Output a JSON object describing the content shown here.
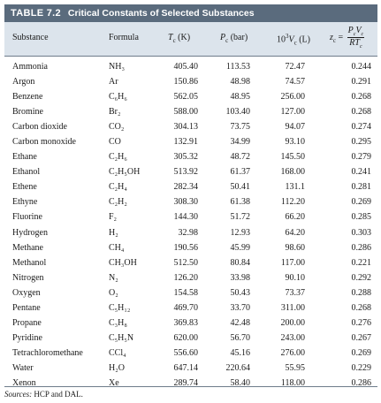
{
  "table": {
    "number": "TABLE 7.2",
    "caption": "Critical Constants of Selected Substances",
    "headers": {
      "substance": "Substance",
      "formula": "Formula",
      "tc": "T",
      "tc_sub": "c",
      "tc_unit": " (K)",
      "pc": "P",
      "pc_sub": "c",
      "pc_unit": " (bar)",
      "vc_prefix": "10",
      "vc_sup": "3",
      "vc": "V",
      "vc_sub": "c",
      "vc_unit": " (L)",
      "zc": "z",
      "zc_sub": "c",
      "zc_eq": " = ",
      "zc_num": "PcVc",
      "zc_den": "RTc"
    },
    "rows": [
      {
        "substance": "Ammonia",
        "formula": "NH₃",
        "tc": "405.40",
        "pc": "113.53",
        "vc": "72.47",
        "zc": "0.244"
      },
      {
        "substance": "Argon",
        "formula": "Ar",
        "tc": "150.86",
        "pc": "48.98",
        "vc": "74.57",
        "zc": "0.291"
      },
      {
        "substance": "Benzene",
        "formula": "C₆H₆",
        "tc": "562.05",
        "pc": "48.95",
        "vc": "256.00",
        "zc": "0.268"
      },
      {
        "substance": "Bromine",
        "formula": "Br₂",
        "tc": "588.00",
        "pc": "103.40",
        "vc": "127.00",
        "zc": "0.268"
      },
      {
        "substance": "Carbon dioxide",
        "formula": "CO₂",
        "tc": "304.13",
        "pc": "73.75",
        "vc": "94.07",
        "zc": "0.274"
      },
      {
        "substance": "Carbon monoxide",
        "formula": "CO",
        "tc": "132.91",
        "pc": "34.99",
        "vc": "93.10",
        "zc": "0.295"
      },
      {
        "substance": "Ethane",
        "formula": "C₂H₆",
        "tc": "305.32",
        "pc": "48.72",
        "vc": "145.50",
        "zc": "0.279"
      },
      {
        "substance": "Ethanol",
        "formula": "C₂H₅OH",
        "tc": "513.92",
        "pc": "61.37",
        "vc": "168.00",
        "zc": "0.241"
      },
      {
        "substance": "Ethene",
        "formula": "C₂H₄",
        "tc": "282.34",
        "pc": "50.41",
        "vc": "131.1",
        "zc": "0.281"
      },
      {
        "substance": "Ethyne",
        "formula": "C₂H₂",
        "tc": "308.30",
        "pc": "61.38",
        "vc": "112.20",
        "zc": "0.269"
      },
      {
        "substance": "Fluorine",
        "formula": "F₂",
        "tc": "144.30",
        "pc": "51.72",
        "vc": "66.20",
        "zc": "0.285"
      },
      {
        "substance": "Hydrogen",
        "formula": "H₂",
        "tc": "32.98",
        "pc": "12.93",
        "vc": "64.20",
        "zc": "0.303"
      },
      {
        "substance": "Methane",
        "formula": "CH₄",
        "tc": "190.56",
        "pc": "45.99",
        "vc": "98.60",
        "zc": "0.286"
      },
      {
        "substance": "Methanol",
        "formula": "CH₃OH",
        "tc": "512.50",
        "pc": "80.84",
        "vc": "117.00",
        "zc": "0.221"
      },
      {
        "substance": "Nitrogen",
        "formula": "N₂",
        "tc": "126.20",
        "pc": "33.98",
        "vc": "90.10",
        "zc": "0.292"
      },
      {
        "substance": "Oxygen",
        "formula": "O₂",
        "tc": "154.58",
        "pc": "50.43",
        "vc": "73.37",
        "zc": "0.288"
      },
      {
        "substance": "Pentane",
        "formula": "C₅H₁₂",
        "tc": "469.70",
        "pc": "33.70",
        "vc": "311.00",
        "zc": "0.268"
      },
      {
        "substance": "Propane",
        "formula": "C₃H₈",
        "tc": "369.83",
        "pc": "42.48",
        "vc": "200.00",
        "zc": "0.276"
      },
      {
        "substance": "Pyridine",
        "formula": "C₅H₅N",
        "tc": "620.00",
        "pc": "56.70",
        "vc": "243.00",
        "zc": "0.267"
      },
      {
        "substance": "Tetrachloromethane",
        "formula": "CCl₄",
        "tc": "556.60",
        "pc": "45.16",
        "vc": "276.00",
        "zc": "0.269"
      },
      {
        "substance": "Water",
        "formula": "H₂O",
        "tc": "647.14",
        "pc": "220.64",
        "vc": "55.95",
        "zc": "0.229"
      },
      {
        "substance": "Xenon",
        "formula": "Xe",
        "tc": "289.74",
        "pc": "58.40",
        "vc": "118.00",
        "zc": "0.286"
      }
    ],
    "source_label": "Sources:",
    "source_text": " HCP and DAL."
  },
  "colors": {
    "title_bar": "#5a6b7d",
    "header_bg": "#dce4ec"
  }
}
